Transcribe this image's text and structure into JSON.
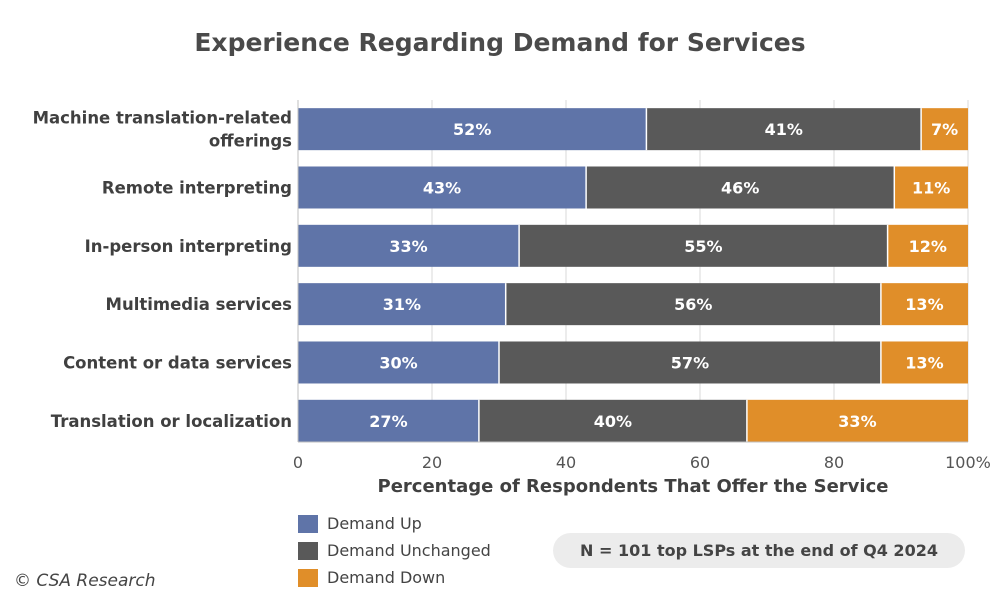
{
  "chart_data": {
    "type": "bar",
    "orientation": "horizontal",
    "stacked": true,
    "title": "Experience Regarding Demand for Services",
    "xlabel": "Percentage of Respondents That Offer the Service",
    "ylabel": "",
    "xlim": [
      0,
      100
    ],
    "x_ticks": [
      "0",
      "20",
      "40",
      "60",
      "80",
      "100%"
    ],
    "grid": true,
    "legend_position": "bottom-left",
    "categories": [
      "Machine translation-related offerings",
      "Remote interpreting",
      "In-person interpreting",
      "Multimedia services",
      "Content or data services",
      "Translation or localization"
    ],
    "series": [
      {
        "name": "Demand Up",
        "color": "#5f74a8",
        "values": [
          52,
          43,
          33,
          31,
          30,
          27
        ]
      },
      {
        "name": "Demand Unchanged",
        "color": "#595959",
        "values": [
          41,
          46,
          55,
          56,
          57,
          40
        ]
      },
      {
        "name": "Demand Down",
        "color": "#e08e29",
        "values": [
          7,
          11,
          12,
          13,
          13,
          33
        ]
      }
    ]
  },
  "note": "N = 101 top LSPs at the end of Q4 2024",
  "copyright": "© CSA Research"
}
